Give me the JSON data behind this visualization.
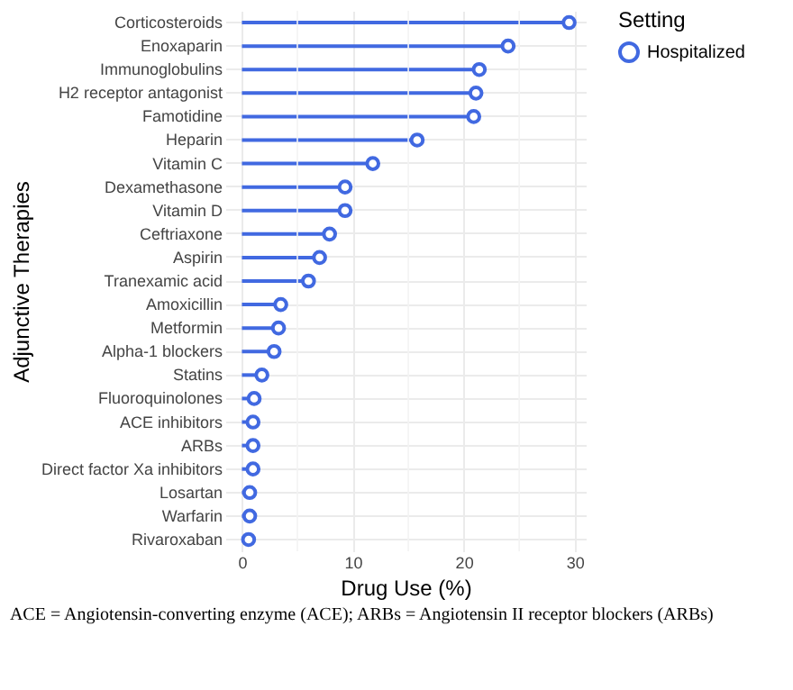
{
  "chart_data": {
    "type": "lollipop",
    "xlabel": "Drug Use (%)",
    "ylabel": "Adjunctive Therapies",
    "legend_title": "Setting",
    "orientation": "horizontal",
    "categories": [
      "Corticosteroids",
      "Enoxaparin",
      "Immunoglobulins",
      "H2 receptor antagonist",
      "Famotidine",
      "Heparin",
      "Vitamin C",
      "Dexamethasone",
      "Vitamin D",
      "Ceftriaxone",
      "Aspirin",
      "Tranexamic acid",
      "Amoxicillin",
      "Metformin",
      "Alpha-1 blockers",
      "Statins",
      "Fluoroquinolones",
      "ACE inhibitors",
      "ARBs",
      "Direct factor Xa inhibitors",
      "Losartan",
      "Warfarin",
      "Rivaroxaban"
    ],
    "series": [
      {
        "name": "Hospitalized",
        "color": "#4169e1",
        "values": [
          29.5,
          24.0,
          21.4,
          21.1,
          20.9,
          15.8,
          11.8,
          9.3,
          9.3,
          7.9,
          7.0,
          6.0,
          3.5,
          3.3,
          2.9,
          1.8,
          1.1,
          1.0,
          1.0,
          1.0,
          0.7,
          0.7,
          0.6
        ]
      }
    ],
    "xlim": [
      -1.5,
      31
    ],
    "xticks": [
      0,
      {
        "value": 5,
        "label": null
      },
      10,
      {
        "value": 15,
        "label": null
      },
      20,
      {
        "value": 25,
        "label": null
      },
      30
    ],
    "grid": true,
    "legend": "right",
    "marker": "circle",
    "annotations": [
      "ACE = Angiotensin-converting enzyme (ACE); ARBs = Angiotensin II receptor blockers (ARBs)"
    ]
  }
}
